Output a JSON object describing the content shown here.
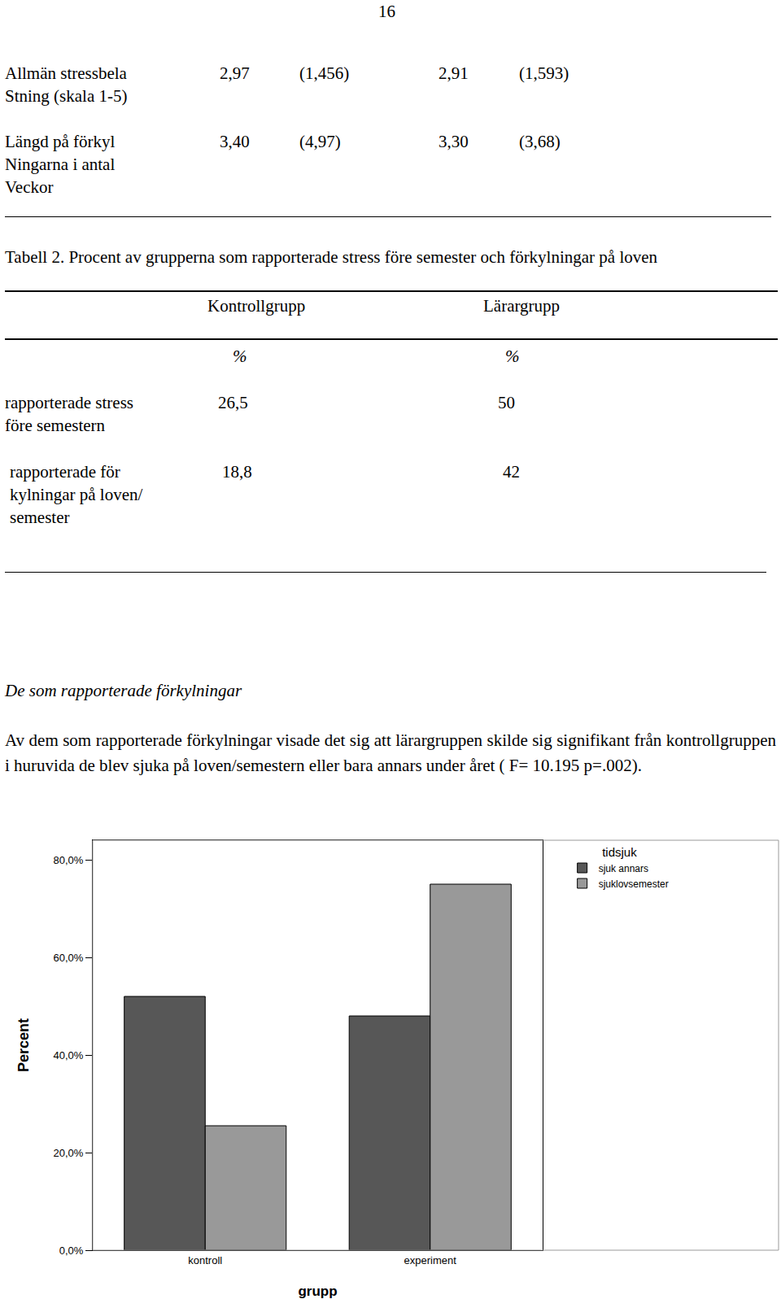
{
  "page_number": "16",
  "summary_rows": [
    {
      "label": [
        "Allmän stressbela",
        "Stning (skala 1-5)"
      ],
      "cells": [
        "2,97",
        "(1,456)",
        "2,91",
        "(1,593)"
      ]
    },
    {
      "label": [
        "Längd på förkyl",
        "Ningarna i antal",
        "Veckor"
      ],
      "cells": [
        "3,40",
        "(4,97)",
        "3,30",
        "(3,68)"
      ]
    }
  ],
  "table2": {
    "caption": "Tabell 2. Procent av grupperna som rapporterade stress före semester och förkylningar på loven",
    "columns": [
      "Kontrollgrupp",
      "Lärargrupp"
    ],
    "units": [
      "%",
      "%"
    ],
    "rows": [
      {
        "label": [
          "rapporterade stress",
          "före semestern"
        ],
        "cells": [
          "26,5",
          "50"
        ]
      },
      {
        "label": [
          "rapporterade för",
          "kylningar på loven/",
          "semester"
        ],
        "cells": [
          "18,8",
          "42"
        ]
      }
    ]
  },
  "section": {
    "heading": "De som rapporterade förkylningar",
    "text": "Av dem som rapporterade förkylningar visade det sig att lärargruppen skilde sig signifikant från kontrollgruppen i huruvida de blev sjuka på loven/semestern eller bara annars under året ( F= 10.195 p=.002)."
  },
  "chart_data": {
    "type": "bar",
    "x_label": "grupp",
    "y_label": "Percent",
    "legend_title": "tidsjuk",
    "legend": "top right",
    "categories": [
      "kontroll",
      "experiment"
    ],
    "series": [
      {
        "name": "sjuk annars",
        "color": "#575757",
        "values": [
          52,
          48
        ]
      },
      {
        "name": "sjuklovsemester",
        "color": "#999999",
        "values": [
          25.5,
          75
        ]
      }
    ],
    "ylim": [
      0,
      84
    ],
    "yticks": [
      {
        "value": 0,
        "label": "0,0%"
      },
      {
        "value": 20,
        "label": "20,0%"
      },
      {
        "value": 40,
        "label": "40,0%"
      },
      {
        "value": 60,
        "label": "60,0%"
      },
      {
        "value": 80,
        "label": "80,0%"
      }
    ],
    "grid": false
  }
}
